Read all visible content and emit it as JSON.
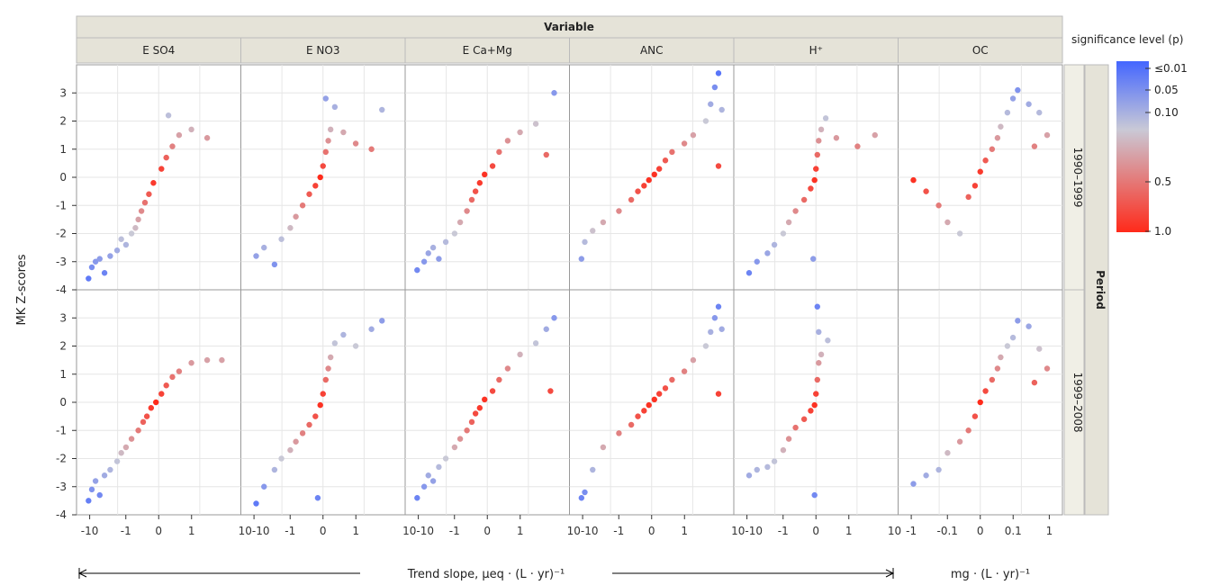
{
  "chart_data": {
    "type": "scatter",
    "ylabel": "MK Z-scores",
    "col_strip_title": "Variable",
    "row_strip_title": "Period",
    "variables": [
      "E SO4",
      "E NO3",
      "E Ca+Mg",
      "ANC",
      "H⁺",
      "OC"
    ],
    "periods": [
      "1990–1999",
      "1999–2008"
    ],
    "ylim": [
      -4,
      4
    ],
    "y_ticks": [
      "3",
      "2",
      "1",
      "0",
      "-1",
      "-2",
      "-3",
      "-4"
    ],
    "x_tick_labels": [
      "-10",
      "-1",
      "0",
      "1",
      "10-10",
      "-1",
      "0",
      "1",
      "10-10",
      "-1",
      "0",
      "1",
      "10-10",
      "-1",
      "0",
      "1",
      "10-10",
      "-1",
      "0",
      "1",
      "10",
      "-1",
      "-0.1",
      "0",
      "0.1",
      "1"
    ],
    "xlabel_main": "Trend slope, μeq · (L · yr)⁻¹",
    "xlabel_oc": "mg · (L · yr)⁻¹",
    "legend": {
      "title": "significance level (p)",
      "labels": [
        "≤0.01",
        "0.05",
        "0.10",
        "0.5",
        "1.0"
      ],
      "colors": [
        "#4466ff",
        "#c9c9d6",
        "#ff2a1a"
      ]
    },
    "grid": true,
    "panels": [
      {
        "variable": "E SO4",
        "period": "1990–1999",
        "points": [
          [
            -9,
            -3.6
          ],
          [
            -8,
            -3.2
          ],
          [
            -7,
            -3
          ],
          [
            -6,
            -2.9
          ],
          [
            -5,
            -3.4
          ],
          [
            -4,
            -2.8
          ],
          [
            -3,
            -2.6
          ],
          [
            -2.5,
            -2.2
          ],
          [
            -2,
            -2.4
          ],
          [
            -1.5,
            -2.0
          ],
          [
            -1.2,
            -1.8
          ],
          [
            -1,
            -1.5
          ],
          [
            -0.8,
            -1.2
          ],
          [
            -0.6,
            -0.9
          ],
          [
            -0.4,
            -0.6
          ],
          [
            -0.2,
            -0.2
          ],
          [
            0.1,
            0.3
          ],
          [
            0.3,
            0.7
          ],
          [
            0.6,
            1.1
          ],
          [
            1,
            1.5
          ],
          [
            2,
            1.7
          ],
          [
            4,
            1.4
          ],
          [
            0.4,
            2.2
          ]
        ]
      },
      {
        "variable": "E NO3",
        "period": "1990–1999",
        "points": [
          [
            -8,
            -2.8
          ],
          [
            -6,
            -2.5
          ],
          [
            -4,
            -3.1
          ],
          [
            -3,
            -2.2
          ],
          [
            -2,
            -1.8
          ],
          [
            -1.5,
            -1.4
          ],
          [
            -1,
            -1.0
          ],
          [
            -0.6,
            -0.6
          ],
          [
            -0.3,
            -0.3
          ],
          [
            -0.1,
            0.0
          ],
          [
            0.0,
            0.4
          ],
          [
            0.1,
            0.9
          ],
          [
            0.2,
            1.3
          ],
          [
            0.3,
            1.7
          ],
          [
            0.1,
            2.8
          ],
          [
            0.5,
            2.5
          ],
          [
            1,
            1.6
          ],
          [
            2,
            1.2
          ],
          [
            4,
            1.0
          ],
          [
            6,
            2.4
          ]
        ]
      },
      {
        "variable": "E Ca+Mg",
        "period": "1990–1999",
        "points": [
          [
            -9,
            -3.3
          ],
          [
            -7,
            -3.0
          ],
          [
            -6,
            -2.7
          ],
          [
            -5,
            -2.5
          ],
          [
            -4,
            -2.9
          ],
          [
            -3,
            -2.3
          ],
          [
            -2,
            -2.0
          ],
          [
            -1.5,
            -1.6
          ],
          [
            -1,
            -1.2
          ],
          [
            -0.7,
            -0.8
          ],
          [
            -0.5,
            -0.5
          ],
          [
            -0.3,
            -0.2
          ],
          [
            -0.1,
            0.1
          ],
          [
            0.2,
            0.4
          ],
          [
            0.5,
            0.9
          ],
          [
            1,
            1.3
          ],
          [
            2,
            1.6
          ],
          [
            4,
            1.9
          ],
          [
            8,
            3.0
          ],
          [
            6,
            0.8
          ]
        ]
      },
      {
        "variable": "ANC",
        "period": "1990–1999",
        "points": [
          [
            -9,
            -2.9
          ],
          [
            -8,
            -2.3
          ],
          [
            -6,
            -1.9
          ],
          [
            -4,
            -1.6
          ],
          [
            -2,
            -1.2
          ],
          [
            -1,
            -0.8
          ],
          [
            -0.6,
            -0.5
          ],
          [
            -0.3,
            -0.3
          ],
          [
            -0.1,
            -0.1
          ],
          [
            0.1,
            0.1
          ],
          [
            0.3,
            0.3
          ],
          [
            0.6,
            0.6
          ],
          [
            1,
            0.9
          ],
          [
            2,
            1.2
          ],
          [
            3,
            1.5
          ],
          [
            5,
            2.0
          ],
          [
            6,
            2.6
          ],
          [
            7,
            3.2
          ],
          [
            8,
            3.7
          ],
          [
            9,
            2.4
          ],
          [
            8,
            0.4
          ]
        ]
      },
      {
        "variable": "H⁺",
        "period": "1990–1999",
        "points": [
          [
            -8,
            -3.4
          ],
          [
            -6,
            -3.0
          ],
          [
            -4,
            -2.7
          ],
          [
            -3,
            -2.4
          ],
          [
            -2,
            -2.0
          ],
          [
            -1.5,
            -1.6
          ],
          [
            -1,
            -1.2
          ],
          [
            -0.5,
            -0.8
          ],
          [
            -0.2,
            -0.4
          ],
          [
            -0.05,
            -0.1
          ],
          [
            0.0,
            0.3
          ],
          [
            0.05,
            0.8
          ],
          [
            0.1,
            1.3
          ],
          [
            0.2,
            1.7
          ],
          [
            0.4,
            2.1
          ],
          [
            1,
            1.4
          ],
          [
            3,
            1.1
          ],
          [
            6,
            1.5
          ],
          [
            -0.1,
            -2.9
          ]
        ]
      },
      {
        "variable": "OC",
        "period": "1990–1999",
        "points": [
          [
            -0.8,
            -0.1
          ],
          [
            -0.5,
            -0.5
          ],
          [
            -0.3,
            -1.0
          ],
          [
            -0.2,
            -1.6
          ],
          [
            -0.1,
            -2.0
          ],
          [
            -0.05,
            -0.7
          ],
          [
            -0.02,
            -0.3
          ],
          [
            0.0,
            0.2
          ],
          [
            0.02,
            0.6
          ],
          [
            0.05,
            1.0
          ],
          [
            0.08,
            1.4
          ],
          [
            0.1,
            1.8
          ],
          [
            0.15,
            2.3
          ],
          [
            0.2,
            2.8
          ],
          [
            0.25,
            3.1
          ],
          [
            0.4,
            2.6
          ],
          [
            0.6,
            2.3
          ],
          [
            0.8,
            1.5
          ],
          [
            0.5,
            1.1
          ]
        ]
      },
      {
        "variable": "E SO4",
        "period": "1999–2008",
        "points": [
          [
            -9,
            -3.5
          ],
          [
            -8,
            -3.1
          ],
          [
            -7,
            -2.8
          ],
          [
            -6,
            -3.3
          ],
          [
            -5,
            -2.6
          ],
          [
            -4,
            -2.4
          ],
          [
            -3,
            -2.1
          ],
          [
            -2.5,
            -1.8
          ],
          [
            -2,
            -1.6
          ],
          [
            -1.5,
            -1.3
          ],
          [
            -1,
            -1.0
          ],
          [
            -0.7,
            -0.7
          ],
          [
            -0.5,
            -0.5
          ],
          [
            -0.3,
            -0.2
          ],
          [
            -0.1,
            0.0
          ],
          [
            0.1,
            0.3
          ],
          [
            0.3,
            0.6
          ],
          [
            0.6,
            0.9
          ],
          [
            1,
            1.1
          ],
          [
            2,
            1.4
          ],
          [
            4,
            1.5
          ],
          [
            7,
            1.5
          ]
        ]
      },
      {
        "variable": "E NO3",
        "period": "1999–2008",
        "points": [
          [
            -8,
            -3.6
          ],
          [
            -6,
            -3.0
          ],
          [
            -4,
            -2.4
          ],
          [
            -3,
            -2.0
          ],
          [
            -2,
            -1.7
          ],
          [
            -1.5,
            -1.4
          ],
          [
            -1,
            -1.1
          ],
          [
            -0.6,
            -0.8
          ],
          [
            -0.3,
            -0.5
          ],
          [
            -0.1,
            -0.1
          ],
          [
            0.0,
            0.3
          ],
          [
            0.1,
            0.8
          ],
          [
            0.2,
            1.2
          ],
          [
            0.3,
            1.6
          ],
          [
            0.5,
            2.1
          ],
          [
            1,
            2.4
          ],
          [
            2,
            2.0
          ],
          [
            4,
            2.6
          ],
          [
            6,
            2.9
          ],
          [
            -0.2,
            -3.4
          ]
        ]
      },
      {
        "variable": "E Ca+Mg",
        "period": "1999–2008",
        "points": [
          [
            -9,
            -3.4
          ],
          [
            -7,
            -3.0
          ],
          [
            -6,
            -2.6
          ],
          [
            -5,
            -2.8
          ],
          [
            -4,
            -2.3
          ],
          [
            -3,
            -2.0
          ],
          [
            -2,
            -1.6
          ],
          [
            -1.5,
            -1.3
          ],
          [
            -1,
            -1.0
          ],
          [
            -0.7,
            -0.7
          ],
          [
            -0.5,
            -0.4
          ],
          [
            -0.3,
            -0.2
          ],
          [
            -0.1,
            0.1
          ],
          [
            0.2,
            0.4
          ],
          [
            0.5,
            0.8
          ],
          [
            1,
            1.2
          ],
          [
            2,
            1.7
          ],
          [
            4,
            2.1
          ],
          [
            6,
            2.6
          ],
          [
            8,
            3.0
          ],
          [
            7,
            0.4
          ]
        ]
      },
      {
        "variable": "ANC",
        "period": "1999–2008",
        "points": [
          [
            -9,
            -3.4
          ],
          [
            -8,
            -3.2
          ],
          [
            -6,
            -2.4
          ],
          [
            -4,
            -1.6
          ],
          [
            -2,
            -1.1
          ],
          [
            -1,
            -0.8
          ],
          [
            -0.6,
            -0.5
          ],
          [
            -0.3,
            -0.3
          ],
          [
            -0.1,
            -0.1
          ],
          [
            0.1,
            0.1
          ],
          [
            0.3,
            0.3
          ],
          [
            0.6,
            0.5
          ],
          [
            1,
            0.8
          ],
          [
            2,
            1.1
          ],
          [
            3,
            1.5
          ],
          [
            5,
            2.0
          ],
          [
            6,
            2.5
          ],
          [
            7,
            3.0
          ],
          [
            8,
            3.4
          ],
          [
            9,
            2.6
          ],
          [
            8,
            0.3
          ]
        ]
      },
      {
        "variable": "H⁺",
        "period": "1999–2008",
        "points": [
          [
            -8,
            -2.6
          ],
          [
            -6,
            -2.4
          ],
          [
            -4,
            -2.3
          ],
          [
            -3,
            -2.1
          ],
          [
            -2,
            -1.7
          ],
          [
            -1.5,
            -1.3
          ],
          [
            -1,
            -0.9
          ],
          [
            -0.5,
            -0.6
          ],
          [
            -0.2,
            -0.3
          ],
          [
            -0.05,
            -0.1
          ],
          [
            0.0,
            0.3
          ],
          [
            0.05,
            0.8
          ],
          [
            0.1,
            1.4
          ],
          [
            0.2,
            1.7
          ],
          [
            0.05,
            3.4
          ],
          [
            0.1,
            2.5
          ],
          [
            0.5,
            2.2
          ],
          [
            -0.05,
            -3.3
          ]
        ]
      },
      {
        "variable": "OC",
        "period": "1999–2008",
        "points": [
          [
            -0.8,
            -2.9
          ],
          [
            -0.5,
            -2.6
          ],
          [
            -0.3,
            -2.4
          ],
          [
            -0.2,
            -1.8
          ],
          [
            -0.1,
            -1.4
          ],
          [
            -0.05,
            -1.0
          ],
          [
            -0.02,
            -0.5
          ],
          [
            0.0,
            0.0
          ],
          [
            0.02,
            0.4
          ],
          [
            0.05,
            0.8
          ],
          [
            0.08,
            1.2
          ],
          [
            0.1,
            1.6
          ],
          [
            0.15,
            2.0
          ],
          [
            0.2,
            2.3
          ],
          [
            0.25,
            2.9
          ],
          [
            0.4,
            2.7
          ],
          [
            0.6,
            1.9
          ],
          [
            0.8,
            1.2
          ],
          [
            0.5,
            0.7
          ]
        ]
      }
    ]
  }
}
